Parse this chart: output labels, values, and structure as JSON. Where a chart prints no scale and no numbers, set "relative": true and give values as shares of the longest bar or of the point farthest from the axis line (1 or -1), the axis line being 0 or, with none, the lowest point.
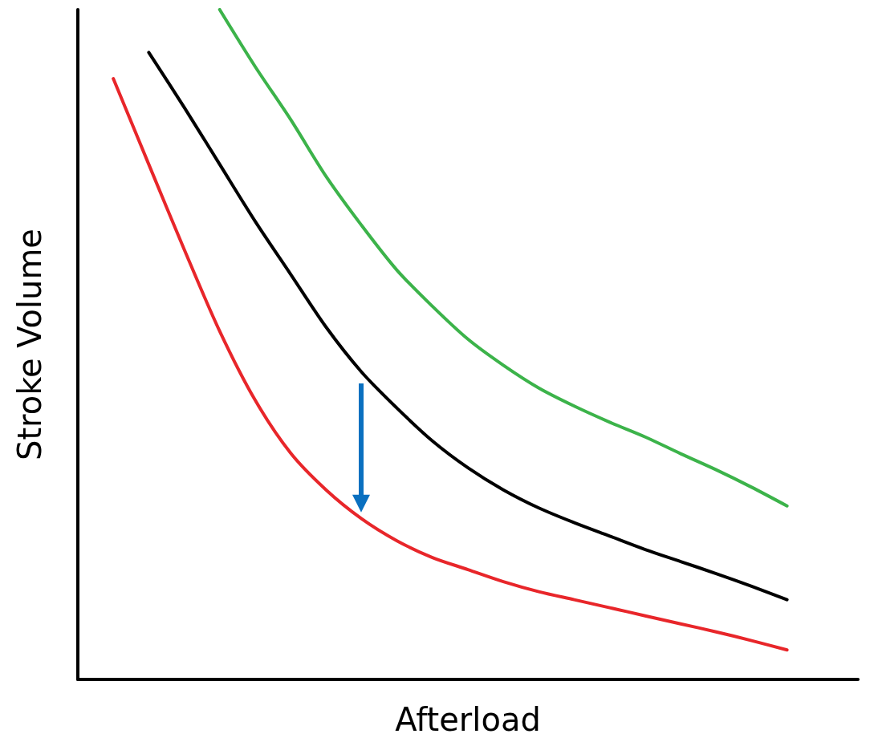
{
  "chart_data": {
    "type": "line",
    "relative": true,
    "xlabel": "Afterload",
    "ylabel": "Stroke Volume",
    "categories": [
      null,
      null,
      null,
      null,
      null,
      null,
      null,
      null,
      null,
      null,
      null,
      null,
      null,
      null,
      null,
      null,
      null,
      null,
      null,
      null,
      null,
      null,
      null
    ],
    "series": [
      {
        "color": "#e8262a",
        "values": [
          null,
          0.897,
          0.769,
          0.642,
          0.52,
          0.417,
          0.338,
          0.283,
          0.24,
          0.207,
          0.182,
          0.164,
          0.146,
          0.131,
          0.119,
          0.107,
          0.095,
          0.083,
          0.071,
          0.058,
          0.044,
          null,
          null
        ]
      },
      {
        "color": "#000000",
        "values": [
          null,
          null,
          0.936,
          0.854,
          0.769,
          0.684,
          0.605,
          0.526,
          0.459,
          0.405,
          0.356,
          0.316,
          0.283,
          0.256,
          0.234,
          0.214,
          0.194,
          0.176,
          0.158,
          0.139,
          0.119,
          null,
          null
        ]
      },
      {
        "color": "#3cb34a",
        "values": [
          null,
          null,
          null,
          null,
          1,
          0.915,
          0.836,
          0.751,
          0.678,
          0.611,
          0.557,
          0.508,
          0.469,
          0.435,
          0.408,
          0.384,
          0.362,
          0.337,
          0.313,
          0.287,
          0.259,
          null,
          null
        ]
      }
    ],
    "marker": "none",
    "line_style": "solid"
  }
}
